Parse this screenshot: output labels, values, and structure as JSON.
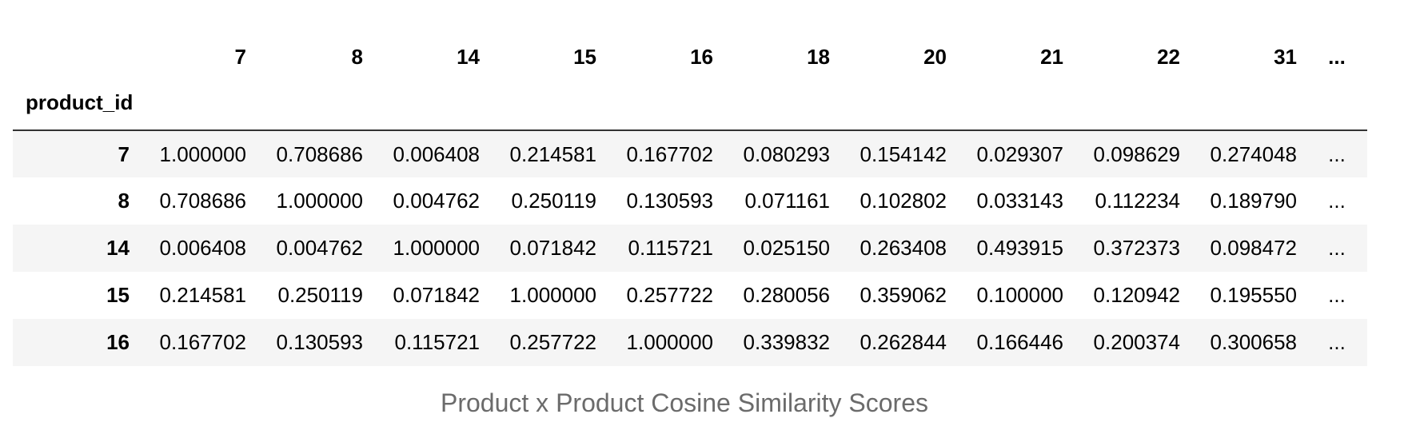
{
  "table": {
    "index_name": "product_id",
    "columns": [
      "7",
      "8",
      "14",
      "15",
      "16",
      "18",
      "20",
      "21",
      "22",
      "31"
    ],
    "ellipsis": "...",
    "rows": [
      {
        "label": "7",
        "values": [
          "1.000000",
          "0.708686",
          "0.006408",
          "0.214581",
          "0.167702",
          "0.080293",
          "0.154142",
          "0.029307",
          "0.098629",
          "0.274048"
        ]
      },
      {
        "label": "8",
        "values": [
          "0.708686",
          "1.000000",
          "0.004762",
          "0.250119",
          "0.130593",
          "0.071161",
          "0.102802",
          "0.033143",
          "0.112234",
          "0.189790"
        ]
      },
      {
        "label": "14",
        "values": [
          "0.006408",
          "0.004762",
          "1.000000",
          "0.071842",
          "0.115721",
          "0.025150",
          "0.263408",
          "0.493915",
          "0.372373",
          "0.098472"
        ]
      },
      {
        "label": "15",
        "values": [
          "0.214581",
          "0.250119",
          "0.071842",
          "1.000000",
          "0.257722",
          "0.280056",
          "0.359062",
          "0.100000",
          "0.120942",
          "0.195550"
        ]
      },
      {
        "label": "16",
        "values": [
          "0.167702",
          "0.130593",
          "0.115721",
          "0.257722",
          "1.000000",
          "0.339832",
          "0.262844",
          "0.166446",
          "0.200374",
          "0.300658"
        ]
      }
    ]
  },
  "caption": "Product x Product Cosine Similarity Scores"
}
